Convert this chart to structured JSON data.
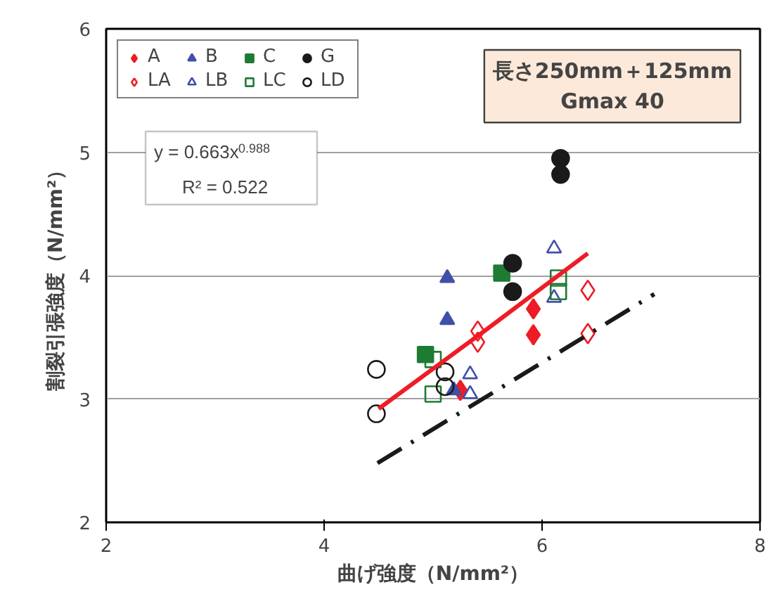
{
  "chart_data": {
    "type": "scatter",
    "xlabel": "曲げ強度（N/mm²）",
    "ylabel": "割裂引張強度（N/mm²）",
    "xlim": [
      2,
      8
    ],
    "ylim": [
      2,
      6
    ],
    "xticks": [
      2,
      4,
      6,
      8
    ],
    "yticks": [
      2,
      3,
      4,
      5,
      6
    ],
    "grid": "y",
    "legend": "top left",
    "annotations": [
      "長さ250mm＋125mm",
      "Gmax 40",
      "y = 0.663x$^{0.988}$",
      "R² = 0.522"
    ],
    "series": [
      {
        "name": "A",
        "color": "#ee1c25",
        "marker": "diamond",
        "x": [
          5.92,
          5.92,
          5.25
        ],
        "values": [
          3.73,
          3.52,
          3.07
        ]
      },
      {
        "name": "B",
        "color": "#4050a8",
        "marker": "triangle",
        "x": [
          5.13,
          5.13,
          5.19
        ],
        "values": [
          3.98,
          3.64,
          3.07
        ]
      },
      {
        "name": "C",
        "color": "#1e7b34",
        "marker": "square",
        "x": [
          4.93,
          5.63
        ],
        "values": [
          3.36,
          4.02
        ]
      },
      {
        "name": "G",
        "color": "#1a1a1a",
        "marker": "circle",
        "x": [
          6.17,
          6.17,
          5.73,
          5.73
        ],
        "values": [
          4.95,
          4.82,
          4.1,
          3.87
        ]
      },
      {
        "name": "LA",
        "color": "#ee1c25",
        "marker": "diamond",
        "x": [
          5.41,
          5.41,
          6.42,
          6.42
        ],
        "values": [
          3.55,
          3.46,
          3.88,
          3.53
        ]
      },
      {
        "name": "LB",
        "color": "#4050a8",
        "marker": "triangle",
        "x": [
          6.11,
          6.11,
          5.34,
          5.34
        ],
        "values": [
          4.22,
          3.82,
          3.2,
          3.04
        ]
      },
      {
        "name": "LC",
        "color": "#1e7b34",
        "marker": "square",
        "x": [
          5.0,
          5.0,
          6.15,
          6.15
        ],
        "values": [
          3.32,
          3.04,
          3.98,
          3.87
        ]
      },
      {
        "name": "LD",
        "color": "#1a1a1a",
        "marker": "circle",
        "x": [
          4.48,
          4.48,
          5.11,
          5.11
        ],
        "values": [
          3.24,
          2.88,
          3.22,
          3.1
        ]
      },
      {
        "type": "line",
        "color": "#ee1c25",
        "line_style": "solid",
        "x": [
          4.5,
          5.5,
          6.42
        ],
        "values": [
          2.92,
          3.57,
          4.18
        ]
      },
      {
        "type": "line",
        "color": "#1a1a1a",
        "line_style": "dashdot",
        "x": [
          4.49,
          7.03
        ],
        "values": [
          2.48,
          3.85
        ]
      }
    ]
  }
}
